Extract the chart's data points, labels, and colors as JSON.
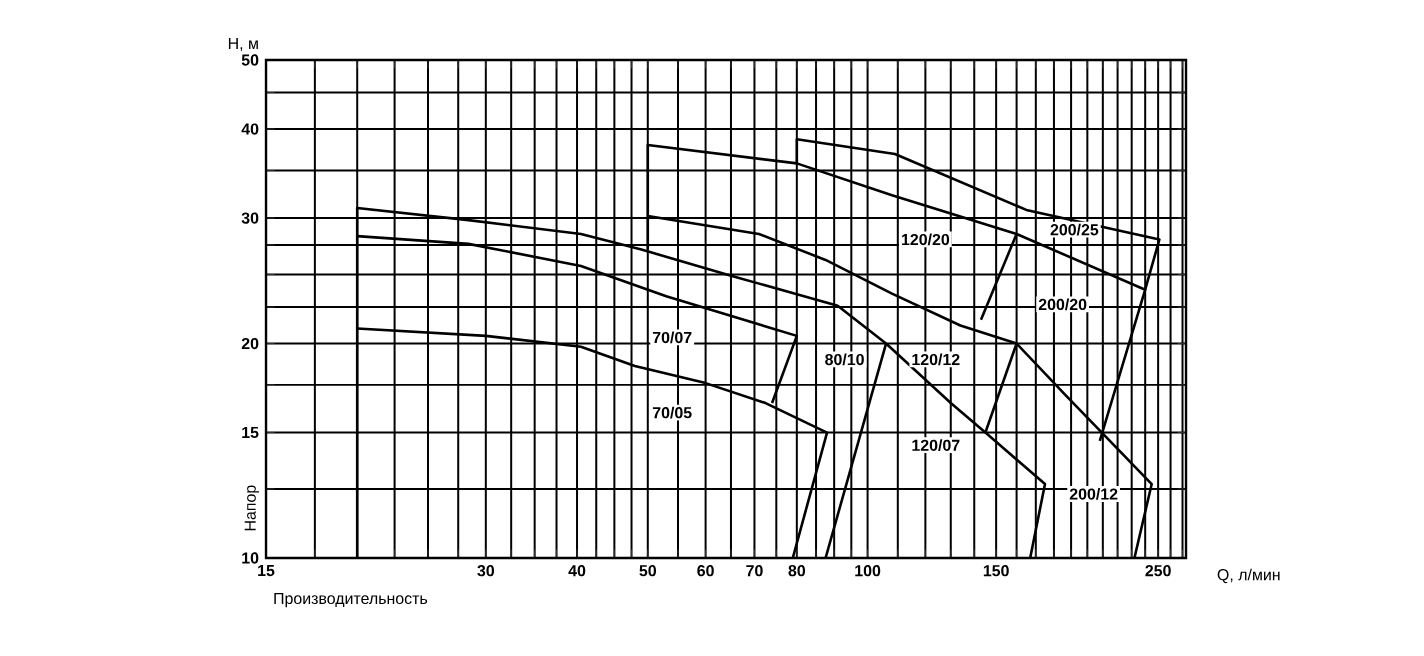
{
  "chart_data": {
    "type": "line",
    "xlabel": "Производительность",
    "ylabel": "Напор",
    "log": "xy",
    "grid": true,
    "line_style": "solid",
    "xlim": [
      15,
      273
    ],
    "ylim": [
      10,
      50
    ],
    "xticks": [
      15,
      {
        "value": 17.5,
        "label": null
      },
      {
        "value": 20,
        "label": null
      },
      {
        "value": 22.5,
        "label": null
      },
      {
        "value": 25,
        "label": null
      },
      {
        "value": 27.5,
        "label": null
      },
      30,
      {
        "value": 32.5,
        "label": null
      },
      {
        "value": 35,
        "label": null
      },
      {
        "value": 37.5,
        "label": null
      },
      40,
      {
        "value": 42.5,
        "label": null
      },
      {
        "value": 45,
        "label": null
      },
      {
        "value": 47.5,
        "label": null
      },
      50,
      {
        "value": 55,
        "label": null
      },
      60,
      {
        "value": 65,
        "label": null
      },
      70,
      {
        "value": 75,
        "label": null
      },
      80,
      {
        "value": 85,
        "label": null
      },
      {
        "value": 90,
        "label": null
      },
      {
        "value": 95,
        "label": null
      },
      100,
      {
        "value": 110,
        "label": null
      },
      {
        "value": 120,
        "label": null
      },
      {
        "value": 130,
        "label": null
      },
      {
        "value": 140,
        "label": null
      },
      150,
      {
        "value": 160,
        "label": null
      },
      {
        "value": 170,
        "label": null
      },
      {
        "value": 180,
        "label": null
      },
      {
        "value": 190,
        "label": null
      },
      {
        "value": 200,
        "label": null
      },
      {
        "value": 210,
        "label": null
      },
      {
        "value": 220,
        "label": null
      },
      {
        "value": 230,
        "label": null
      },
      {
        "value": 240,
        "label": null
      },
      250,
      {
        "value": 260,
        "label": null
      },
      {
        "value": 270,
        "label": null
      }
    ],
    "yticks": [
      10,
      {
        "value": 12.5,
        "label": null
      },
      15,
      {
        "value": 17.5,
        "label": null
      },
      20,
      {
        "value": 22.5,
        "label": null
      },
      {
        "value": 25,
        "label": null
      },
      {
        "value": 27.5,
        "label": null
      },
      30,
      {
        "value": 35,
        "label": null
      },
      40,
      {
        "value": 45,
        "label": null
      },
      50
    ],
    "series": [
      {
        "color": "#000000",
        "x": [
          20,
          30,
          40.5,
          48,
          60,
          72.5,
          88,
          79
        ],
        "values": [
          21,
          20.5,
          19.8,
          18.6,
          17.6,
          16.5,
          15,
          10
        ]
      },
      {
        "color": "#000000",
        "x": [
          20,
          28.4,
          40.5,
          53,
          80,
          74
        ],
        "values": [
          28.3,
          27.6,
          25.7,
          23.3,
          20.5,
          16.5
        ]
      },
      {
        "color": "#000000",
        "x": [
          20,
          20,
          28.4,
          40.5,
          49,
          65,
          91,
          106,
          130,
          145,
          175,
          167
        ],
        "values": [
          10,
          31,
          29.8,
          28.5,
          27.1,
          24.9,
          22.6,
          20,
          16.5,
          15,
          12.7,
          10
        ]
      },
      {
        "color": "#000000",
        "x": [
          106,
          87.6
        ],
        "values": [
          20,
          10
        ]
      },
      {
        "color": "#000000",
        "x": [
          50,
          71,
          87.6,
          108,
          134,
          160,
          186,
          245,
          232
        ],
        "values": [
          30.2,
          28.5,
          26.2,
          23.5,
          21.2,
          20,
          17,
          12.7,
          10
        ]
      },
      {
        "color": "#000000",
        "x": [
          160,
          145
        ],
        "values": [
          20,
          15
        ]
      },
      {
        "color": "#000000",
        "x": [
          160,
          143
        ],
        "values": [
          28.5,
          21.6
        ]
      },
      {
        "color": "#000000",
        "x": [
          50,
          50,
          80,
          108,
          160,
          240,
          208
        ],
        "values": [
          27.1,
          38,
          35.8,
          32.3,
          28.5,
          23.8,
          14.6
        ]
      },
      {
        "color": "#000000",
        "x": [
          80,
          80,
          109,
          165,
          251,
          240
        ],
        "values": [
          35.8,
          38.7,
          36.9,
          30.8,
          28,
          23.8
        ]
      }
    ],
    "annotations": [
      "Н, м",
      "Q, л/мин",
      {
        "text": "70/07",
        "x": 54,
        "y": 20.4
      },
      {
        "text": "70/05",
        "x": 54,
        "y": 16
      },
      {
        "text": "80/10",
        "x": 93,
        "y": 19
      },
      {
        "text": "120/12",
        "x": 124,
        "y": 19
      },
      {
        "text": "120/07",
        "x": 124,
        "y": 14.4
      },
      {
        "text": "120/20",
        "x": 120,
        "y": 28
      },
      {
        "text": "200/25",
        "x": 192,
        "y": 28.9
      },
      {
        "text": "200/20",
        "x": 185,
        "y": 22.7
      },
      {
        "text": "200/12",
        "x": 204,
        "y": 12.3
      }
    ]
  }
}
